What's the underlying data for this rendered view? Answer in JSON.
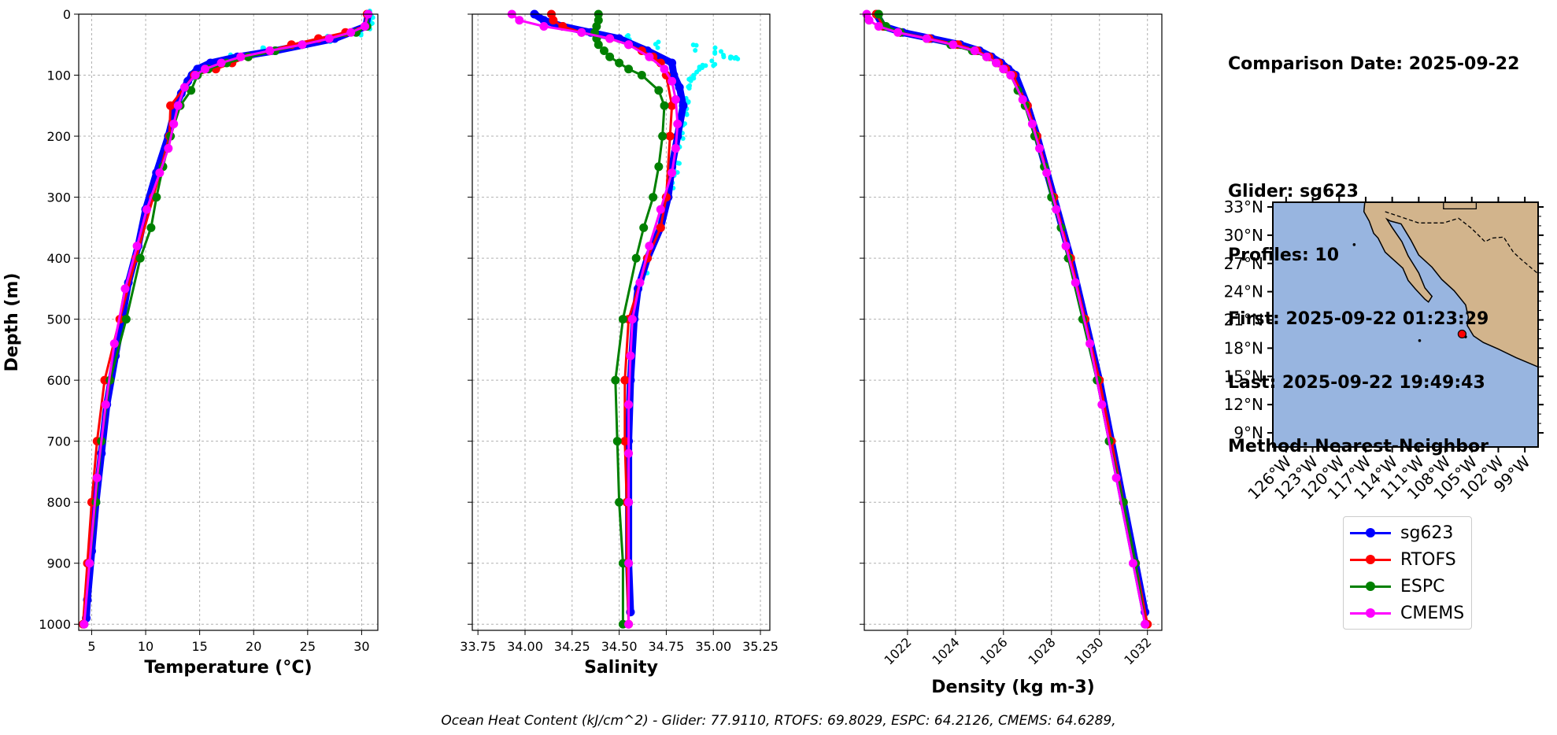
{
  "info": {
    "comparison_date": "Comparison Date: 2025-09-22",
    "glider": "Glider: sg623",
    "profiles": "Profiles: 10",
    "first": "First: 2025-09-22 01:23:29",
    "last": "Last: 2025-09-22 19:49:43",
    "method": "Method: Nearest-Neighbor"
  },
  "footer": {
    "text": "Ocean Heat Content (kJ/cm^2) - Glider: 77.9110,  RTOFS: 69.8029,  ESPC: 64.2126,  CMEMS: 64.6289,"
  },
  "legend": [
    {
      "name": "sg623",
      "color": "#0000ff"
    },
    {
      "name": "RTOFS",
      "color": "#ff0000"
    },
    {
      "name": "ESPC",
      "color": "#008000"
    },
    {
      "name": "CMEMS",
      "color": "#ff00ff"
    }
  ],
  "colors": {
    "raw_glider": "#00ffff",
    "ocean": "#98b5e0",
    "land": "#d2b48c"
  },
  "map": {
    "lat_ticks": [
      "33°N",
      "30°N",
      "27°N",
      "24°N",
      "21°N",
      "18°N",
      "15°N",
      "12°N",
      "9°N"
    ],
    "lon_ticks": [
      "126°W",
      "123°W",
      "120°W",
      "117°W",
      "114°W",
      "111°W",
      "108°W",
      "105°W",
      "102°W",
      "99°W"
    ],
    "lon_range": [
      -127.5,
      -97.5
    ],
    "lat_range": [
      7.5,
      33.5
    ],
    "glider_position": {
      "lon": -106.1,
      "lat": 19.5
    }
  },
  "chart_data": [
    {
      "type": "line",
      "xlabel": "Temperature (°C)",
      "ylabel": "Depth (m)",
      "xlim": [
        3.8,
        31.5
      ],
      "ylim": [
        1010,
        0
      ],
      "xticks": [
        5,
        10,
        15,
        20,
        25,
        30
      ],
      "yticks": [
        0,
        100,
        200,
        300,
        400,
        500,
        600,
        700,
        800,
        900,
        1000
      ],
      "grid": true,
      "series": [
        {
          "name": "sg623",
          "depth": [
            0,
            20,
            40,
            60,
            70,
            80,
            90,
            100,
            110,
            130,
            150,
            200,
            260,
            320,
            380,
            440,
            500,
            560,
            640,
            720,
            800,
            880,
            960,
            990
          ],
          "values": [
            30.6,
            30.4,
            27.5,
            22,
            18.5,
            16,
            14.8,
            14.3,
            13.9,
            13.3,
            12.8,
            12.1,
            11,
            10,
            9.3,
            8.4,
            7.8,
            7.2,
            6.4,
            5.9,
            5.4,
            5.0,
            4.6,
            4.5
          ]
        },
        {
          "name": "RTOFS",
          "depth": [
            0,
            20,
            30,
            40,
            50,
            60,
            70,
            80,
            90,
            100,
            150,
            200,
            300,
            400,
            500,
            600,
            700,
            800,
            900,
            1000
          ],
          "values": [
            30.5,
            30.3,
            28.5,
            26,
            23.5,
            21.5,
            19.5,
            18,
            16.5,
            14.5,
            12.3,
            12.2,
            10.7,
            9.1,
            7.6,
            6.2,
            5.5,
            5.0,
            4.6,
            4.2
          ]
        },
        {
          "name": "ESPC",
          "depth": [
            0,
            20,
            30,
            40,
            50,
            60,
            70,
            80,
            90,
            100,
            125,
            150,
            200,
            250,
            300,
            350,
            400,
            500,
            600,
            700,
            800,
            900,
            1000
          ],
          "values": [
            30.6,
            30.5,
            29.5,
            27,
            24.5,
            22,
            19.5,
            17.5,
            15.8,
            14.8,
            14.2,
            13.2,
            12.3,
            11.6,
            11,
            10.5,
            9.5,
            8.2,
            6.7,
            5.9,
            5.4,
            4.8,
            4.3
          ]
        },
        {
          "name": "CMEMS",
          "depth": [
            0,
            20,
            30,
            40,
            50,
            60,
            70,
            80,
            90,
            100,
            120,
            150,
            180,
            220,
            260,
            320,
            380,
            450,
            540,
            640,
            760,
            900,
            1000
          ],
          "values": [
            30.6,
            30.3,
            29,
            27,
            24.5,
            21.5,
            18.8,
            17,
            15.5,
            14.6,
            13.6,
            13,
            12.6,
            12.1,
            11.3,
            10.1,
            9.2,
            8.1,
            7.1,
            6.3,
            5.5,
            4.8,
            4.3
          ]
        }
      ],
      "raw_profiles": {
        "name": "sg623 raw",
        "depth": [
          0,
          10,
          20,
          30,
          40,
          50,
          60,
          70,
          80,
          90,
          100
        ],
        "values": [
          30.8,
          30.9,
          30.7,
          29.8,
          27,
          24,
          21,
          18,
          16,
          15,
          14.4
        ]
      }
    },
    {
      "type": "line",
      "xlabel": "Salinity",
      "ylabel": "",
      "xlim": [
        33.72,
        35.3
      ],
      "ylim": [
        1010,
        0
      ],
      "xticks": [
        33.75,
        34.0,
        34.25,
        34.5,
        34.75,
        35.0,
        35.25
      ],
      "xticklabels": [
        "33.75",
        "34.00",
        "34.25",
        "34.50",
        "34.75",
        "35.00",
        "35.25"
      ],
      "yticks": [
        0,
        100,
        200,
        300,
        400,
        500,
        600,
        700,
        800,
        900,
        1000
      ],
      "grid": true,
      "series": [
        {
          "name": "sg623",
          "depth": [
            0,
            10,
            20,
            30,
            40,
            60,
            80,
            100,
            120,
            150,
            200,
            250,
            300,
            350,
            400,
            450,
            500,
            600,
            700,
            800,
            900,
            980
          ],
          "values": [
            34.05,
            34.1,
            34.2,
            34.35,
            34.5,
            34.65,
            34.78,
            34.79,
            34.82,
            34.84,
            34.81,
            34.78,
            34.76,
            34.72,
            34.65,
            34.6,
            34.58,
            34.56,
            34.55,
            34.55,
            34.55,
            34.56
          ]
        },
        {
          "name": "RTOFS",
          "depth": [
            0,
            10,
            20,
            30,
            40,
            50,
            60,
            70,
            80,
            100,
            150,
            200,
            300,
            350,
            400,
            500,
            600,
            700,
            800,
            900,
            1000
          ],
          "values": [
            34.14,
            34.15,
            34.2,
            34.3,
            34.45,
            34.55,
            34.62,
            34.68,
            34.72,
            34.75,
            34.78,
            34.77,
            34.75,
            34.72,
            34.65,
            34.55,
            34.53,
            34.53,
            34.54,
            34.54,
            34.55
          ]
        },
        {
          "name": "ESPC",
          "depth": [
            0,
            10,
            20,
            30,
            40,
            50,
            60,
            70,
            80,
            90,
            100,
            125,
            150,
            200,
            250,
            300,
            350,
            400,
            500,
            600,
            700,
            800,
            900,
            1000
          ],
          "values": [
            34.39,
            34.39,
            34.38,
            34.37,
            34.38,
            34.39,
            34.42,
            34.45,
            34.5,
            34.55,
            34.62,
            34.71,
            34.74,
            34.73,
            34.71,
            34.68,
            34.63,
            34.59,
            34.52,
            34.48,
            34.49,
            34.5,
            34.52,
            34.52
          ]
        },
        {
          "name": "CMEMS",
          "depth": [
            0,
            10,
            20,
            30,
            40,
            50,
            70,
            90,
            110,
            140,
            180,
            220,
            260,
            320,
            380,
            440,
            500,
            560,
            640,
            720,
            800,
            900,
            1000
          ],
          "values": [
            33.93,
            33.97,
            34.1,
            34.3,
            34.45,
            34.55,
            34.66,
            34.74,
            34.78,
            34.8,
            34.81,
            34.8,
            34.78,
            34.72,
            34.66,
            34.61,
            34.57,
            34.56,
            34.55,
            34.55,
            34.55,
            34.55,
            34.55
          ]
        }
      ],
      "raw_profiles": {
        "name": "sg623 raw",
        "depth": [
          40,
          50,
          55,
          60,
          65,
          70,
          75,
          80,
          85,
          90,
          100,
          110,
          120,
          140,
          160,
          180,
          200,
          220,
          240,
          260,
          280,
          300,
          340,
          380,
          420
        ],
        "values": [
          34.55,
          34.7,
          34.9,
          35.0,
          35.05,
          35.12,
          35.1,
          35.0,
          34.95,
          34.92,
          34.9,
          34.88,
          34.87,
          34.86,
          34.85,
          34.84,
          34.83,
          34.82,
          34.81,
          34.8,
          34.78,
          34.76,
          34.72,
          34.68,
          34.64
        ]
      }
    },
    {
      "type": "line",
      "xlabel": "Density (kg m-3)",
      "ylabel": "",
      "xlim": [
        1020.2,
        1032.6
      ],
      "ylim": [
        1010,
        0
      ],
      "xticks": [
        1022,
        1024,
        1026,
        1028,
        1030,
        1032
      ],
      "yticks": [
        0,
        100,
        200,
        300,
        400,
        500,
        600,
        700,
        800,
        900,
        1000
      ],
      "grid": true,
      "series": [
        {
          "name": "sg623",
          "depth": [
            0,
            20,
            30,
            40,
            50,
            60,
            70,
            80,
            90,
            100,
            150,
            200,
            300,
            400,
            500,
            600,
            700,
            800,
            900,
            980
          ],
          "values": [
            1020.7,
            1021.0,
            1021.8,
            1023.0,
            1024.2,
            1025.0,
            1025.5,
            1025.9,
            1026.2,
            1026.5,
            1027.0,
            1027.4,
            1028.1,
            1028.8,
            1029.4,
            1030.0,
            1030.5,
            1031.0,
            1031.5,
            1031.9
          ]
        },
        {
          "name": "RTOFS",
          "depth": [
            0,
            20,
            30,
            40,
            50,
            60,
            70,
            80,
            90,
            100,
            150,
            200,
            300,
            400,
            500,
            600,
            700,
            800,
            900,
            1000
          ],
          "values": [
            1020.7,
            1021.0,
            1021.7,
            1022.9,
            1024.1,
            1024.9,
            1025.4,
            1025.8,
            1026.1,
            1026.4,
            1027.0,
            1027.4,
            1028.1,
            1028.8,
            1029.4,
            1030.0,
            1030.5,
            1031.0,
            1031.5,
            1032.0
          ]
        },
        {
          "name": "ESPC",
          "depth": [
            0,
            20,
            30,
            40,
            50,
            60,
            70,
            80,
            90,
            100,
            125,
            150,
            200,
            250,
            300,
            350,
            400,
            500,
            600,
            700,
            800,
            900,
            1000
          ],
          "values": [
            1020.8,
            1021.1,
            1021.7,
            1022.8,
            1023.8,
            1024.7,
            1025.3,
            1025.7,
            1026.0,
            1026.3,
            1026.6,
            1026.9,
            1027.3,
            1027.7,
            1028.0,
            1028.4,
            1028.7,
            1029.3,
            1029.9,
            1030.4,
            1031.0,
            1031.5,
            1031.9
          ]
        },
        {
          "name": "CMEMS",
          "depth": [
            0,
            10,
            20,
            30,
            40,
            50,
            60,
            70,
            80,
            90,
            100,
            140,
            180,
            220,
            260,
            320,
            380,
            440,
            540,
            640,
            760,
            900,
            1000
          ],
          "values": [
            1020.3,
            1020.4,
            1020.8,
            1021.6,
            1022.8,
            1023.9,
            1024.8,
            1025.3,
            1025.7,
            1026.0,
            1026.3,
            1026.8,
            1027.2,
            1027.5,
            1027.8,
            1028.2,
            1028.6,
            1029.0,
            1029.6,
            1030.1,
            1030.7,
            1031.4,
            1031.9
          ]
        }
      ]
    }
  ]
}
